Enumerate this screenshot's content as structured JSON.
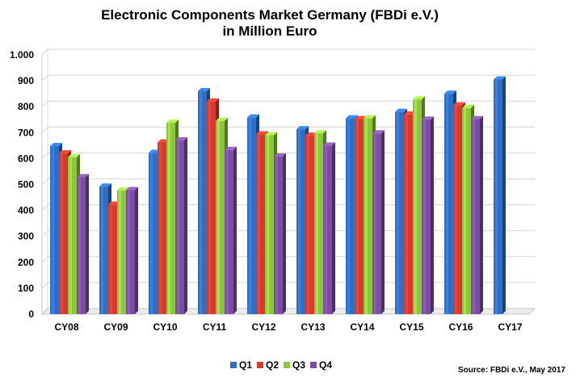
{
  "chart_data": {
    "type": "bar",
    "title": "Electronic Components Market Germany (FBDi e.V.)",
    "subtitle": "in Million Euro",
    "xlabel": "",
    "ylabel": "",
    "categories": [
      "CY08",
      "CY09",
      "CY10",
      "CY11",
      "CY12",
      "CY13",
      "CY14",
      "CY15",
      "CY16",
      "CY17"
    ],
    "ylim": [
      0,
      1000
    ],
    "yticks": [
      0,
      100,
      200,
      300,
      400,
      500,
      600,
      700,
      800,
      900,
      1000
    ],
    "ytick_labels": [
      "0",
      "100",
      "200",
      "300",
      "400",
      "500",
      "600",
      "700",
      "800",
      "900",
      "1.000"
    ],
    "grid": true,
    "legend_position": "bottom",
    "series": [
      {
        "name": "Q1",
        "color": "#2e6fc4",
        "values": [
          648,
          492,
          622,
          860,
          758,
          713,
          755,
          780,
          850,
          905
        ]
      },
      {
        "name": "Q2",
        "color": "#d63a2c",
        "values": [
          620,
          422,
          662,
          820,
          693,
          688,
          752,
          770,
          805,
          null
        ]
      },
      {
        "name": "Q3",
        "color": "#8cc63e",
        "values": [
          605,
          477,
          738,
          745,
          690,
          697,
          755,
          828,
          795,
          null
        ]
      },
      {
        "name": "Q4",
        "color": "#7a4ea3",
        "values": [
          528,
          478,
          670,
          633,
          608,
          650,
          697,
          750,
          752,
          null
        ]
      }
    ],
    "source": "Source: FBDi e.V., May 2017"
  }
}
